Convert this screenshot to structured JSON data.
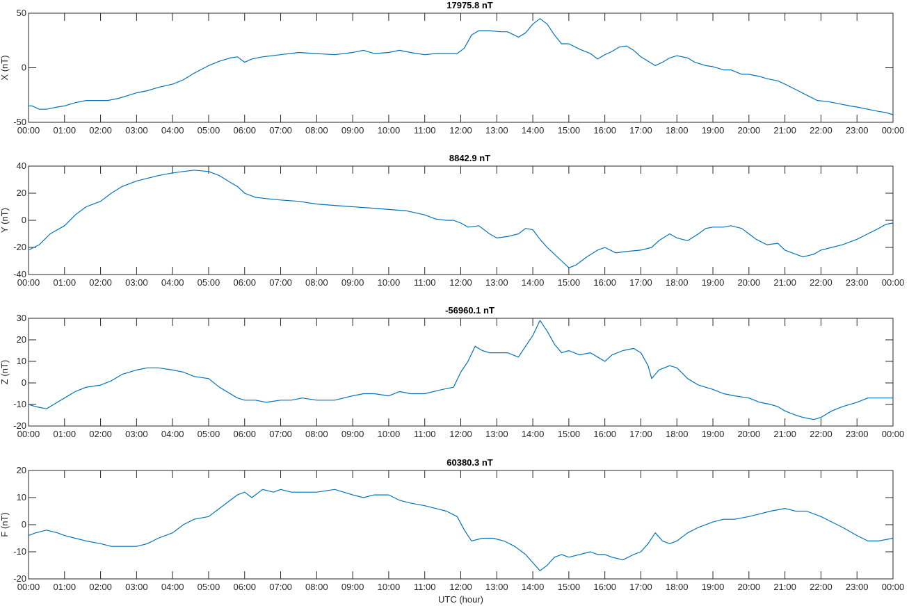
{
  "chart_data": [
    {
      "type": "line",
      "title": "17975.8 nT",
      "ylabel": "X (nT)",
      "xlabel": "",
      "ylim": [
        -50,
        50
      ],
      "yticks": [
        -50,
        0,
        50
      ],
      "xlim": [
        0,
        24
      ],
      "xticks": [
        "00:00",
        "01:00",
        "02:00",
        "03:00",
        "04:00",
        "05:00",
        "06:00",
        "07:00",
        "08:00",
        "09:00",
        "10:00",
        "11:00",
        "12:00",
        "13:00",
        "14:00",
        "15:00",
        "16:00",
        "17:00",
        "18:00",
        "19:00",
        "20:00",
        "21:00",
        "22:00",
        "23:00",
        "00:00"
      ],
      "color": "#0072BD",
      "series": [
        {
          "x": [
            0,
            0.1,
            0.3,
            0.5,
            0.8,
            1.0,
            1.3,
            1.6,
            2.0,
            2.2,
            2.5,
            2.8,
            3.0,
            3.3,
            3.6,
            4.0,
            4.3,
            4.6,
            5.0,
            5.3,
            5.6,
            5.8,
            6.0,
            6.2,
            6.5,
            7.0,
            7.5,
            8.0,
            8.5,
            9.0,
            9.3,
            9.6,
            10.0,
            10.3,
            10.6,
            11.0,
            11.3,
            11.6,
            11.9,
            12.1,
            12.3,
            12.5,
            12.8,
            13.1,
            13.3,
            13.6,
            13.8,
            14.0,
            14.2,
            14.4,
            14.6,
            14.8,
            15.0,
            15.3,
            15.6,
            15.8,
            16.0,
            16.2,
            16.4,
            16.6,
            16.8,
            17.0,
            17.2,
            17.4,
            17.6,
            17.8,
            18.0,
            18.3,
            18.5,
            18.8,
            19.0,
            19.3,
            19.5,
            19.8,
            20.0,
            20.3,
            20.5,
            20.8,
            21.0,
            21.3,
            21.6,
            21.9,
            22.2,
            22.5,
            22.8,
            23.0,
            23.3,
            23.6,
            23.8,
            24.0
          ],
          "y": [
            -35,
            -35,
            -38,
            -38,
            -36,
            -35,
            -32,
            -30,
            -30,
            -30,
            -28,
            -25,
            -23,
            -21,
            -18,
            -15,
            -11,
            -5,
            2,
            6,
            9,
            10,
            5,
            8,
            10,
            12,
            14,
            13,
            12,
            14,
            16,
            13,
            14,
            16,
            14,
            12,
            13,
            13,
            13,
            18,
            30,
            34,
            34,
            33,
            33,
            28,
            32,
            40,
            45,
            40,
            30,
            22,
            22,
            17,
            13,
            8,
            12,
            15,
            19,
            20,
            16,
            10,
            6,
            2,
            5,
            9,
            11,
            9,
            5,
            2,
            1,
            -2,
            -2,
            -6,
            -6,
            -8,
            -10,
            -12,
            -15,
            -20,
            -25,
            -30,
            -31,
            -33,
            -35,
            -36,
            -38,
            -40,
            -41,
            -43
          ]
        }
      ]
    },
    {
      "type": "line",
      "title": "8842.9 nT",
      "ylabel": "Y (nT)",
      "xlabel": "",
      "ylim": [
        -40,
        40
      ],
      "yticks": [
        -40,
        -20,
        0,
        20,
        40
      ],
      "xlim": [
        0,
        24
      ],
      "xticks": [
        "00:00",
        "01:00",
        "02:00",
        "03:00",
        "04:00",
        "05:00",
        "06:00",
        "07:00",
        "08:00",
        "09:00",
        "10:00",
        "11:00",
        "12:00",
        "13:00",
        "14:00",
        "15:00",
        "16:00",
        "17:00",
        "18:00",
        "19:00",
        "20:00",
        "21:00",
        "22:00",
        "23:00",
        "00:00"
      ],
      "color": "#0072BD",
      "series": [
        {
          "x": [
            0,
            0.3,
            0.6,
            1.0,
            1.3,
            1.6,
            2.0,
            2.3,
            2.6,
            3.0,
            3.3,
            3.6,
            4.0,
            4.3,
            4.6,
            5.0,
            5.3,
            5.6,
            5.8,
            6.0,
            6.3,
            6.6,
            7.0,
            7.5,
            8.0,
            8.5,
            9.0,
            9.5,
            10.0,
            10.5,
            11.0,
            11.3,
            11.6,
            11.8,
            12.0,
            12.2,
            12.5,
            12.8,
            13.0,
            13.3,
            13.6,
            13.8,
            14.0,
            14.2,
            14.4,
            14.6,
            14.8,
            15.0,
            15.2,
            15.5,
            15.8,
            16.0,
            16.3,
            16.6,
            17.0,
            17.3,
            17.5,
            17.8,
            18.0,
            18.3,
            18.6,
            18.8,
            19.0,
            19.3,
            19.5,
            19.8,
            20.0,
            20.2,
            20.5,
            20.8,
            21.0,
            21.3,
            21.5,
            21.8,
            22.0,
            22.3,
            22.6,
            23.0,
            23.3,
            23.6,
            23.8,
            24.0
          ],
          "y": [
            -22,
            -18,
            -10,
            -4,
            4,
            10,
            14,
            20,
            25,
            29,
            31,
            33,
            35,
            36,
            37,
            36,
            33,
            28,
            25,
            20,
            17,
            16,
            15,
            14,
            12,
            11,
            10,
            9,
            8,
            7,
            4,
            1,
            0,
            0,
            -2,
            -5,
            -4,
            -10,
            -13,
            -12,
            -10,
            -6,
            -7,
            -14,
            -20,
            -25,
            -30,
            -35,
            -33,
            -27,
            -22,
            -20,
            -24,
            -23,
            -22,
            -20,
            -15,
            -10,
            -13,
            -15,
            -10,
            -6,
            -5,
            -5,
            -4,
            -6,
            -10,
            -14,
            -18,
            -17,
            -22,
            -25,
            -27,
            -25,
            -22,
            -20,
            -18,
            -14,
            -10,
            -6,
            -3,
            -2
          ]
        }
      ]
    },
    {
      "type": "line",
      "title": "-56960.1 nT",
      "ylabel": "Z (nT)",
      "xlabel": "",
      "ylim": [
        -20,
        30
      ],
      "yticks": [
        -20,
        -10,
        0,
        10,
        20,
        30
      ],
      "xlim": [
        0,
        24
      ],
      "xticks": [
        "00:00",
        "01:00",
        "02:00",
        "03:00",
        "04:00",
        "05:00",
        "06:00",
        "07:00",
        "08:00",
        "09:00",
        "10:00",
        "11:00",
        "12:00",
        "13:00",
        "14:00",
        "15:00",
        "16:00",
        "17:00",
        "18:00",
        "19:00",
        "20:00",
        "21:00",
        "22:00",
        "23:00",
        "00:00"
      ],
      "color": "#0072BD",
      "series": [
        {
          "x": [
            0,
            0.2,
            0.5,
            0.8,
            1.0,
            1.3,
            1.6,
            2.0,
            2.3,
            2.6,
            3.0,
            3.3,
            3.6,
            4.0,
            4.3,
            4.6,
            5.0,
            5.3,
            5.6,
            5.8,
            6.0,
            6.3,
            6.6,
            7.0,
            7.3,
            7.6,
            8.0,
            8.5,
            9.0,
            9.3,
            9.6,
            10.0,
            10.3,
            10.6,
            11.0,
            11.5,
            11.8,
            12.0,
            12.2,
            12.4,
            12.6,
            12.8,
            13.0,
            13.3,
            13.6,
            13.8,
            14.0,
            14.2,
            14.4,
            14.6,
            14.8,
            15.0,
            15.3,
            15.6,
            15.8,
            16.0,
            16.2,
            16.5,
            16.8,
            17.0,
            17.2,
            17.3,
            17.5,
            17.8,
            18.0,
            18.3,
            18.6,
            18.8,
            19.0,
            19.3,
            19.6,
            20.0,
            20.3,
            20.6,
            20.8,
            21.0,
            21.3,
            21.5,
            21.8,
            22.0,
            22.3,
            22.6,
            23.0,
            23.3,
            23.6,
            24.0
          ],
          "y": [
            -10,
            -11,
            -12,
            -9,
            -7,
            -4,
            -2,
            -1,
            1,
            4,
            6,
            7,
            7,
            6,
            5,
            3,
            2,
            -2,
            -5,
            -7,
            -8,
            -8,
            -9,
            -8,
            -8,
            -7,
            -8,
            -8,
            -6,
            -5,
            -5,
            -6,
            -4,
            -5,
            -5,
            -3,
            -2,
            5,
            10,
            17,
            15,
            14,
            14,
            14,
            12,
            17,
            22,
            29,
            24,
            18,
            14,
            15,
            13,
            14,
            12,
            10,
            13,
            15,
            16,
            14,
            8,
            2,
            6,
            8,
            7,
            2,
            -1,
            -2,
            -3,
            -5,
            -6,
            -7,
            -9,
            -10,
            -11,
            -13,
            -15,
            -16,
            -17,
            -16,
            -13,
            -11,
            -9,
            -7,
            -7,
            -7
          ]
        }
      ]
    },
    {
      "type": "line",
      "title": "60380.3 nT",
      "ylabel": "F (nT)",
      "xlabel": "UTC (hour)",
      "ylim": [
        -20,
        20
      ],
      "yticks": [
        -20,
        -10,
        0,
        10,
        20
      ],
      "xlim": [
        0,
        24
      ],
      "xticks": [
        "00:00",
        "01:00",
        "02:00",
        "03:00",
        "04:00",
        "05:00",
        "06:00",
        "07:00",
        "08:00",
        "09:00",
        "10:00",
        "11:00",
        "12:00",
        "13:00",
        "14:00",
        "15:00",
        "16:00",
        "17:00",
        "18:00",
        "19:00",
        "20:00",
        "21:00",
        "22:00",
        "23:00",
        "00:00"
      ],
      "color": "#0072BD",
      "series": [
        {
          "x": [
            0,
            0.2,
            0.5,
            0.8,
            1.0,
            1.3,
            1.6,
            2.0,
            2.3,
            2.6,
            3.0,
            3.3,
            3.6,
            4.0,
            4.3,
            4.6,
            5.0,
            5.3,
            5.6,
            5.8,
            6.0,
            6.2,
            6.5,
            6.8,
            7.0,
            7.3,
            7.6,
            8.0,
            8.5,
            9.0,
            9.3,
            9.6,
            10.0,
            10.3,
            10.6,
            11.0,
            11.3,
            11.6,
            11.9,
            12.1,
            12.3,
            12.6,
            12.9,
            13.2,
            13.5,
            13.8,
            14.0,
            14.2,
            14.4,
            14.6,
            14.8,
            15.0,
            15.3,
            15.6,
            15.8,
            16.0,
            16.2,
            16.5,
            16.8,
            17.0,
            17.2,
            17.4,
            17.6,
            17.8,
            18.0,
            18.3,
            18.6,
            19.0,
            19.3,
            19.6,
            20.0,
            20.3,
            20.6,
            21.0,
            21.3,
            21.6,
            22.0,
            22.3,
            22.6,
            23.0,
            23.3,
            23.6,
            24.0
          ],
          "y": [
            -4,
            -3,
            -2,
            -3,
            -4,
            -5,
            -6,
            -7,
            -8,
            -8,
            -8,
            -7,
            -5,
            -3,
            0,
            2,
            3,
            6,
            9,
            11,
            12,
            10,
            13,
            12,
            13,
            12,
            12,
            12,
            13,
            11,
            10,
            11,
            11,
            9,
            8,
            7,
            6,
            5,
            3,
            -2,
            -6,
            -5,
            -5,
            -6,
            -8,
            -11,
            -14,
            -17,
            -15,
            -12,
            -11,
            -12,
            -11,
            -10,
            -11,
            -11,
            -12,
            -13,
            -11,
            -10,
            -7,
            -3,
            -6,
            -7,
            -6,
            -3,
            -1,
            1,
            2,
            2,
            3,
            4,
            5,
            6,
            5,
            5,
            3,
            1,
            -1,
            -4,
            -6,
            -6,
            -5
          ]
        }
      ]
    }
  ]
}
